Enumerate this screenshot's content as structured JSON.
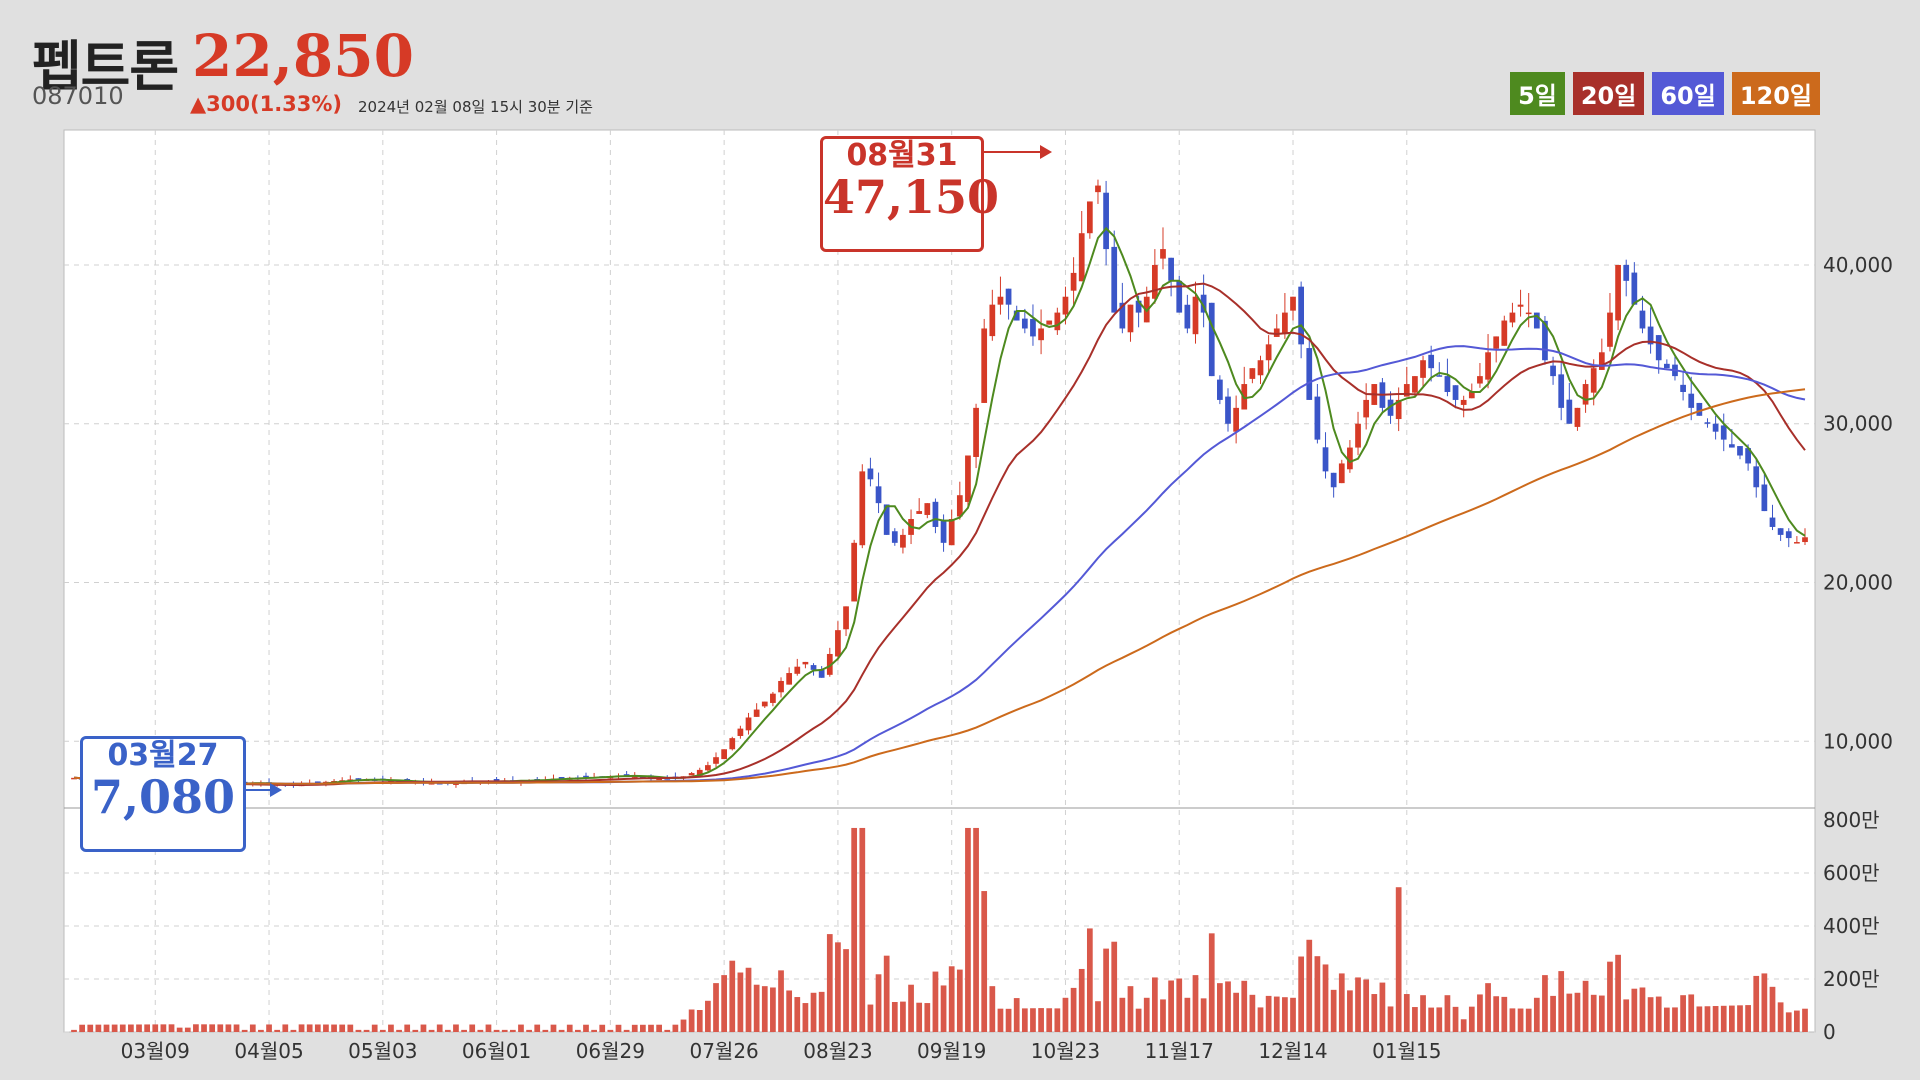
{
  "header": {
    "name": "펩트론",
    "price": "22,850",
    "code": "087010",
    "change": "▲300(1.33%)",
    "asof": "2024년 02월 08일 15시 30분 기준"
  },
  "legend": [
    {
      "label": "5일",
      "color": "#4e8a1f"
    },
    {
      "label": "20일",
      "color": "#a8302a"
    },
    {
      "label": "60일",
      "color": "#5459d6"
    },
    {
      "label": "120일",
      "color": "#cc6a1c"
    }
  ],
  "callouts": {
    "high": {
      "date": "08월31",
      "value": "47,150"
    },
    "low": {
      "date": "03월27",
      "value": "7,080"
    }
  },
  "chart_data": {
    "type": "candlestick",
    "xlabels": [
      "03월09",
      "04월05",
      "05월03",
      "06월01",
      "06월29",
      "07월26",
      "08월23",
      "09월19",
      "10월23",
      "11월17",
      "12월14",
      "01월15"
    ],
    "price_ticks": [
      "10,000",
      "20,000",
      "30,000",
      "40,000"
    ],
    "volume_ticks": [
      "0",
      "200만",
      "400만",
      "600만",
      "800만"
    ],
    "price_ylim": [
      5800,
      48500
    ],
    "volume_ylim": [
      0,
      8000000
    ],
    "up_color": "#d63a26",
    "down_color": "#3a55c8",
    "close": [
      7700,
      7650,
      7600,
      7550,
      7500,
      7450,
      7400,
      7350,
      7300,
      7250,
      7200,
      7150,
      7100,
      7080,
      7100,
      7150,
      7200,
      7250,
      7300,
      7350,
      7400,
      7400,
      7350,
      7350,
      7300,
      7300,
      7250,
      7250,
      7300,
      7350,
      7400,
      7450,
      7500,
      7550,
      7600,
      7600,
      7600,
      7550,
      7550,
      7500,
      7500,
      7450,
      7450,
      7400,
      7400,
      7350,
      7350,
      7400,
      7400,
      7450,
      7450,
      7500,
      7500,
      7500,
      7500,
      7550,
      7550,
      7600,
      7600,
      7650,
      7650,
      7700,
      7700,
      7750,
      7750,
      7800,
      7800,
      7850,
      7850,
      7800,
      7750,
      7700,
      7650,
      7650,
      7700,
      7800,
      8000,
      8200,
      8500,
      9000,
      9500,
      10200,
      10800,
      11500,
      12000,
      12500,
      13000,
      13800,
      14300,
      14700,
      15000,
      14500,
      14000,
      15500,
      17000,
      18500,
      22500,
      27000,
      26500,
      25000,
      23000,
      22500,
      23000,
      24000,
      24500,
      25000,
      23500,
      22500,
      24000,
      25500,
      28000,
      31000,
      36000,
      37500,
      38000,
      37500,
      36500,
      36000,
      35500,
      36000,
      36500,
      37000,
      38000,
      39500,
      42000,
      44000,
      45000,
      41000,
      37000,
      36000,
      37500,
      37000,
      38000,
      40000,
      41000,
      39000,
      37000,
      36000,
      38000,
      37000,
      33000,
      31500,
      30000,
      31000,
      32500,
      33500,
      34000,
      35000,
      36000,
      37000,
      38000,
      35000,
      31500,
      29000,
      27000,
      26000,
      27500,
      28500,
      30000,
      31500,
      32500,
      31000,
      30500,
      31500,
      32500,
      33000,
      34000,
      33500,
      33000,
      32000,
      31500,
      31500,
      32000,
      33000,
      34500,
      35500,
      36500,
      37000,
      37500,
      37000,
      36000,
      34000,
      33000,
      31000,
      30000,
      31000,
      32500,
      33500,
      34500,
      37000,
      40000,
      39000,
      37500,
      36000,
      35000,
      34000,
      33500,
      33000,
      32000,
      31000,
      30500,
      30000,
      29500,
      29000,
      28500,
      28000,
      27500,
      26000,
      24500,
      23500,
      23000,
      22800,
      22550,
      22850
    ]
  }
}
